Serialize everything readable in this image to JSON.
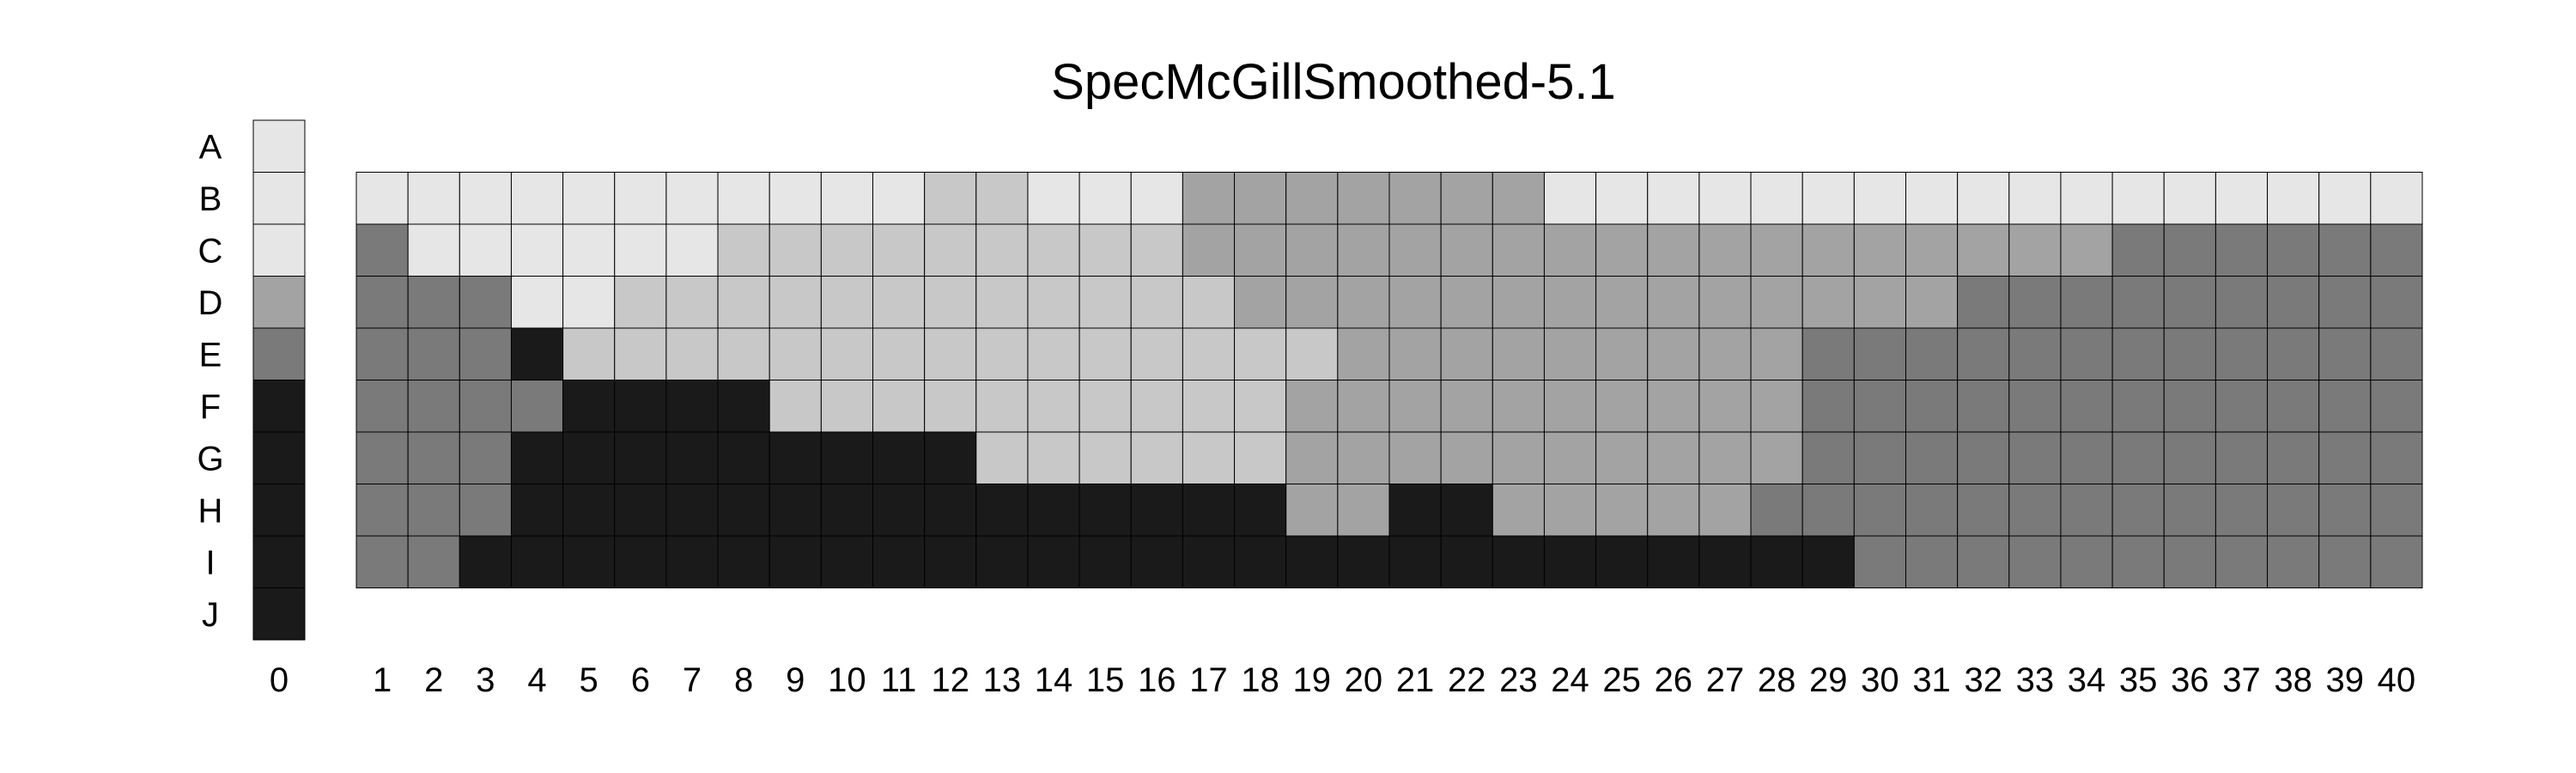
{
  "chart_data": {
    "type": "heatmap",
    "title": "SpecMcGillSmoothed-5.1",
    "rows": [
      "A",
      "B",
      "C",
      "D",
      "E",
      "F",
      "G",
      "H",
      "I",
      "J"
    ],
    "reference_column": {
      "label": "0",
      "levels": [
        0,
        0,
        0,
        2,
        3,
        4,
        4,
        4,
        4,
        4
      ]
    },
    "columns": [
      "1",
      "2",
      "3",
      "4",
      "5",
      "6",
      "7",
      "8",
      "9",
      "10",
      "11",
      "12",
      "13",
      "14",
      "15",
      "16",
      "17",
      "18",
      "19",
      "20",
      "21",
      "22",
      "23",
      "24",
      "25",
      "26",
      "27",
      "28",
      "29",
      "30",
      "31",
      "32",
      "33",
      "34",
      "35",
      "36",
      "37",
      "38",
      "39",
      "40"
    ],
    "grid_rows": [
      "B",
      "C",
      "D",
      "E",
      "F",
      "G",
      "H",
      "I"
    ],
    "levels": [
      [
        0,
        0,
        0,
        0,
        0,
        0,
        0,
        0,
        0,
        0,
        0,
        1,
        1,
        0,
        0,
        0,
        2,
        2,
        2,
        2,
        2,
        2,
        2,
        0,
        0,
        0,
        0,
        0,
        0,
        0,
        0,
        0,
        0,
        0,
        0,
        0,
        0,
        0,
        0,
        0
      ],
      [
        3,
        0,
        0,
        0,
        0,
        0,
        0,
        1,
        1,
        1,
        1,
        1,
        1,
        1,
        1,
        1,
        2,
        2,
        2,
        2,
        2,
        2,
        2,
        2,
        2,
        2,
        2,
        2,
        2,
        2,
        2,
        2,
        2,
        2,
        3,
        3,
        3,
        3,
        3,
        3
      ],
      [
        3,
        3,
        3,
        0,
        0,
        1,
        1,
        1,
        1,
        1,
        1,
        1,
        1,
        1,
        1,
        1,
        1,
        2,
        2,
        2,
        2,
        2,
        2,
        2,
        2,
        2,
        2,
        2,
        2,
        2,
        2,
        3,
        3,
        3,
        3,
        3,
        3,
        3,
        3,
        3
      ],
      [
        3,
        3,
        3,
        4,
        1,
        1,
        1,
        1,
        1,
        1,
        1,
        1,
        1,
        1,
        1,
        1,
        1,
        1,
        1,
        2,
        2,
        2,
        2,
        2,
        2,
        2,
        2,
        2,
        3,
        3,
        3,
        3,
        3,
        3,
        3,
        3,
        3,
        3,
        3,
        3
      ],
      [
        3,
        3,
        3,
        3,
        4,
        4,
        4,
        4,
        1,
        1,
        1,
        1,
        1,
        1,
        1,
        1,
        1,
        1,
        2,
        2,
        2,
        2,
        2,
        2,
        2,
        2,
        2,
        2,
        3,
        3,
        3,
        3,
        3,
        3,
        3,
        3,
        3,
        3,
        3,
        3
      ],
      [
        3,
        3,
        3,
        4,
        4,
        4,
        4,
        4,
        4,
        4,
        4,
        4,
        1,
        1,
        1,
        1,
        1,
        1,
        2,
        2,
        2,
        2,
        2,
        2,
        2,
        2,
        2,
        2,
        3,
        3,
        3,
        3,
        3,
        3,
        3,
        3,
        3,
        3,
        3,
        3
      ],
      [
        3,
        3,
        3,
        4,
        4,
        4,
        4,
        4,
        4,
        4,
        4,
        4,
        4,
        4,
        4,
        4,
        4,
        4,
        2,
        2,
        4,
        4,
        2,
        2,
        2,
        2,
        2,
        3,
        3,
        3,
        3,
        3,
        3,
        3,
        3,
        3,
        3,
        3,
        3,
        3
      ],
      [
        3,
        3,
        4,
        4,
        4,
        4,
        4,
        4,
        4,
        4,
        4,
        4,
        4,
        4,
        4,
        4,
        4,
        4,
        4,
        4,
        4,
        4,
        4,
        4,
        4,
        4,
        4,
        4,
        4,
        3,
        3,
        3,
        3,
        3,
        3,
        3,
        3,
        3,
        3,
        3
      ]
    ],
    "palette": [
      "#e6e6e6",
      "#c8c8c8",
      "#a3a3a3",
      "#7a7a7a",
      "#1a1a1a"
    ],
    "grid": true
  }
}
